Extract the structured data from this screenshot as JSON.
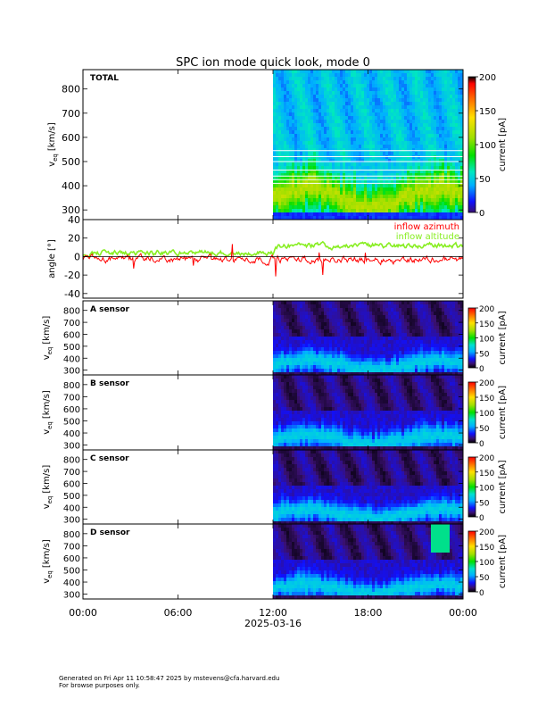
{
  "title": "SPC ion mode quick look, mode 0",
  "footer": {
    "line1": "Generated on Fri Apr 11 10:58:47 2025 by mstevens@cfa.harvard.edu",
    "line2": "For browse purposes only."
  },
  "colors": {
    "azimuth": "#ff0000",
    "altitude": "#88ee22"
  },
  "chart_data": [
    {
      "type": "heatmap",
      "panel": "TOTAL",
      "label": "TOTAL",
      "ylabel": "v_eq [km/s]",
      "ylabel_main": "v",
      "ylabel_sub": "eq",
      "ylabel_unit": "[km/s]",
      "ylim": [
        260,
        880
      ],
      "yticks": [
        300,
        400,
        500,
        600,
        700,
        800
      ],
      "colorbar": {
        "label": "current [pA]",
        "range": [
          0,
          200
        ],
        "ticks": [
          0,
          50,
          100,
          150,
          200
        ],
        "colormap": "rainbow"
      },
      "data_start_hour": 12.0,
      "data_end_hour": 24.0
    },
    {
      "type": "line",
      "panel": "angle",
      "ylabel": "angle [°]",
      "ylim": [
        -45,
        40
      ],
      "yticks": [
        -40,
        -20,
        0,
        20,
        40
      ],
      "legend": "top-right",
      "series": [
        {
          "name": "inflow azimuth",
          "color": "#ff0000"
        },
        {
          "name": "inflow altitude",
          "color": "#88ee22"
        }
      ],
      "segments": [
        {
          "start": 0.0,
          "end": 24.0,
          "mean_azimuth": -3,
          "mean_altitude": 4
        }
      ]
    },
    {
      "type": "heatmap",
      "panel": "A",
      "label": "A sensor",
      "ylabel": "v_eq [km/s]",
      "ylabel_main": "v",
      "ylabel_sub": "eq",
      "ylabel_unit": "[km/s]",
      "ylim": [
        260,
        880
      ],
      "yticks": [
        300,
        400,
        500,
        600,
        700,
        800
      ],
      "colorbar": {
        "label": "current [pA]",
        "range": [
          0,
          200
        ],
        "ticks": [
          0,
          50,
          100,
          150,
          200
        ],
        "colormap": "rainbow-dark"
      },
      "data_start_hour": 12.0,
      "data_end_hour": 24.0
    },
    {
      "type": "heatmap",
      "panel": "B",
      "label": "B sensor",
      "ylabel": "v_eq [km/s]",
      "ylabel_main": "v",
      "ylabel_sub": "eq",
      "ylabel_unit": "[km/s]",
      "ylim": [
        260,
        880
      ],
      "yticks": [
        300,
        400,
        500,
        600,
        700,
        800
      ],
      "colorbar": {
        "label": "current [pA]",
        "range": [
          0,
          200
        ],
        "ticks": [
          0,
          50,
          100,
          150,
          200
        ],
        "colormap": "rainbow-dark"
      },
      "data_start_hour": 12.0,
      "data_end_hour": 24.0
    },
    {
      "type": "heatmap",
      "panel": "C",
      "label": "C sensor",
      "ylabel": "v_eq [km/s]",
      "ylabel_main": "v",
      "ylabel_sub": "eq",
      "ylabel_unit": "[km/s]",
      "ylim": [
        260,
        880
      ],
      "yticks": [
        300,
        400,
        500,
        600,
        700,
        800
      ],
      "colorbar": {
        "label": "current [pA]",
        "range": [
          0,
          200
        ],
        "ticks": [
          0,
          50,
          100,
          150,
          200
        ],
        "colormap": "rainbow-dark"
      },
      "data_start_hour": 12.0,
      "data_end_hour": 24.0
    },
    {
      "type": "heatmap",
      "panel": "D",
      "label": "D sensor",
      "ylabel": "v_eq [km/s]",
      "ylabel_main": "v",
      "ylabel_sub": "eq",
      "ylabel_unit": "[km/s]",
      "ylim": [
        260,
        880
      ],
      "yticks": [
        300,
        400,
        500,
        600,
        700,
        800
      ],
      "colorbar": {
        "label": "current [pA]",
        "range": [
          0,
          200
        ],
        "ticks": [
          0,
          50,
          100,
          150,
          200
        ],
        "colormap": "rainbow-dark"
      },
      "data_start_hour": 12.0,
      "data_end_hour": 24.0
    }
  ],
  "xaxis": {
    "xlim_hours": [
      0,
      24
    ],
    "tick_hours": [
      0,
      6,
      12,
      18,
      24
    ],
    "tick_labels": [
      "00:00",
      "06:00",
      "12:00",
      "18:00",
      "00:00"
    ],
    "date_label": "2025-03-16"
  }
}
